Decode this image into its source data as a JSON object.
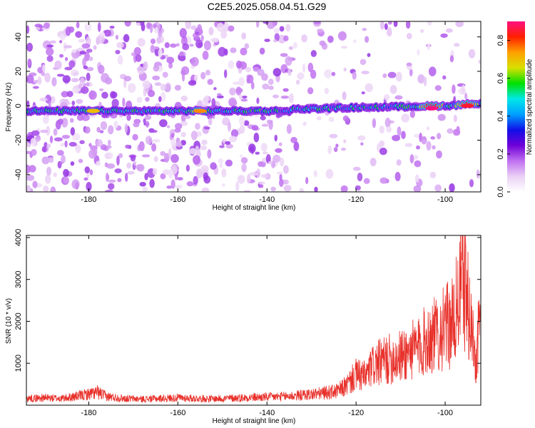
{
  "colors": {
    "snr_line": "#e8302a",
    "colormap": [
      "#ffffff",
      "#ead0f5",
      "#c070f0",
      "#7000d8",
      "#1010e8",
      "#00a0ff",
      "#00e8e8",
      "#00e000",
      "#d8e000",
      "#ffa000",
      "#ff2000",
      "#ff1080"
    ]
  },
  "chart_data": [
    {
      "type": "heatmap",
      "title": "C2E5.2025.058.04.51.G29",
      "xlabel": "Height of straight line (km)",
      "ylabel": "Frequency (Hz)",
      "xlim": [
        -194,
        -92
      ],
      "ylim": [
        -50,
        49
      ],
      "xticks": [
        -180,
        -160,
        -140,
        -120,
        -100
      ],
      "yticks": [
        -40,
        -20,
        0,
        20,
        40
      ],
      "xtick_labels": [
        "-180",
        "-160",
        "-140",
        "-120",
        "-100"
      ],
      "ytick_labels": [
        "-40",
        "-20",
        "0",
        "20",
        "40"
      ],
      "colorbar": {
        "label": "Normalized spectral amplitude",
        "range": [
          0.0,
          0.9
        ],
        "ticks": [
          0.0,
          0.2,
          0.4,
          0.6,
          0.8
        ],
        "tick_labels": [
          "0.0",
          "0.2",
          "0.4",
          "0.6",
          "0.8"
        ]
      },
      "ridge": {
        "description_points_x": [
          -194,
          -180,
          -160,
          -140,
          -135,
          -134,
          -120,
          -100,
          -92
        ],
        "description_points_y": [
          -3,
          -3,
          -3,
          -3,
          -3,
          -2,
          -1,
          0,
          1.5
        ],
        "peak_regions": [
          {
            "x": -179,
            "y": -3,
            "amplitude": 0.7
          },
          {
            "x": -155,
            "y": -3,
            "amplitude": 0.75
          },
          {
            "x": -103,
            "y": -1.5,
            "amplitude": 0.9
          },
          {
            "x": -95,
            "y": 0,
            "amplitude": 0.85
          }
        ]
      }
    },
    {
      "type": "line",
      "xlabel": "Height of straight line (km)",
      "ylabel": "SNR (10 * v/v)",
      "xlim": [
        -194,
        -92
      ],
      "ylim": [
        0,
        4050
      ],
      "xticks": [
        -180,
        -160,
        -140,
        -120,
        -100
      ],
      "yticks": [
        1000,
        2000,
        3000,
        4000
      ],
      "xtick_labels": [
        "-180",
        "-160",
        "-140",
        "-120",
        "-100"
      ],
      "ytick_labels": [
        "1000",
        "2000",
        "3000",
        "4000"
      ],
      "grid": false,
      "series": [
        {
          "x": [
            -194,
            -190,
            -186,
            -182,
            -178,
            -176,
            -172,
            -168,
            -164,
            -160,
            -156,
            -152,
            -148,
            -144,
            -140,
            -136,
            -132,
            -128,
            -124,
            -122,
            -120,
            -118,
            -116,
            -114,
            -112,
            -110,
            -108,
            -106,
            -104,
            -102,
            -100,
            -98,
            -96,
            -94,
            -93,
            -92.5
          ],
          "y": [
            200,
            220,
            200,
            280,
            380,
            260,
            200,
            180,
            200,
            220,
            200,
            190,
            210,
            230,
            240,
            260,
            300,
            350,
            420,
            600,
            900,
            850,
            1200,
            1300,
            1400,
            1450,
            1600,
            1700,
            2000,
            2100,
            2300,
            2500,
            3900,
            2200,
            1200,
            2600
          ]
        }
      ]
    }
  ]
}
